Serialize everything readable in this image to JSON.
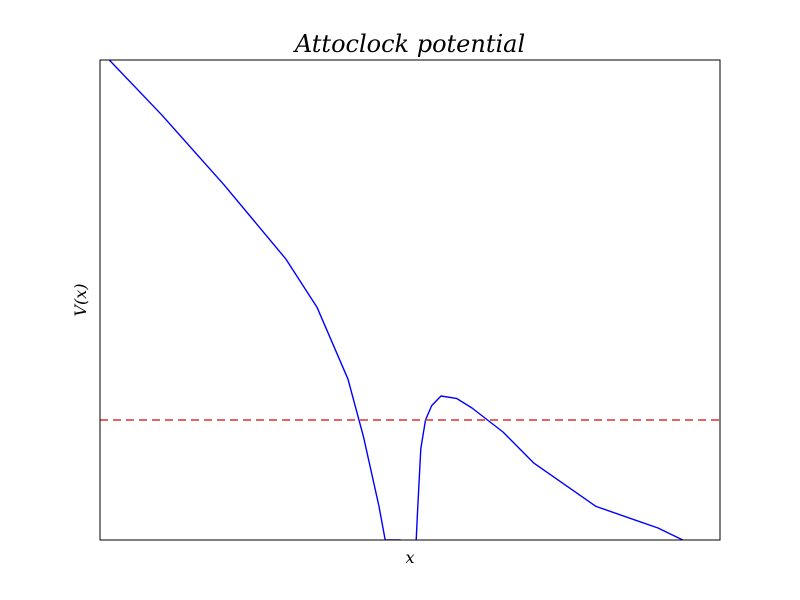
{
  "chart_data": {
    "type": "line",
    "title": "Attoclock potential",
    "xlabel": "x",
    "ylabel": "V(x)",
    "xlim": [
      -1,
      1
    ],
    "ylim": [
      -1,
      1
    ],
    "grid": false,
    "legend": "none",
    "series": [
      {
        "color": "#0000ff",
        "style": "solid",
        "x": [
          -0.97,
          -0.8,
          -0.6,
          -0.4,
          -0.3,
          -0.2,
          -0.15,
          -0.1,
          -0.08,
          -0.06,
          -0.05,
          -0.04,
          -0.03
        ],
        "y": [
          1.0,
          0.77,
          0.48,
          0.17,
          -0.03,
          -0.33,
          -0.57,
          -0.86,
          -1.0,
          -1.0,
          -1.0,
          -1.0,
          -1.0
        ]
      },
      {
        "color": "#0000ff",
        "style": "solid",
        "x": [
          0.02,
          0.025,
          0.035,
          0.05,
          0.07,
          0.1,
          0.15,
          0.2,
          0.3,
          0.4,
          0.6,
          0.8,
          0.88
        ],
        "y": [
          -1.0,
          -0.86,
          -0.62,
          -0.5,
          -0.44,
          -0.4,
          -0.41,
          -0.45,
          -0.55,
          -0.68,
          -0.86,
          -0.95,
          -1.0
        ]
      },
      {
        "color": "#e03030",
        "style": "dashed",
        "x": [
          -1,
          1
        ],
        "y": [
          -0.5,
          -0.5
        ]
      }
    ]
  }
}
